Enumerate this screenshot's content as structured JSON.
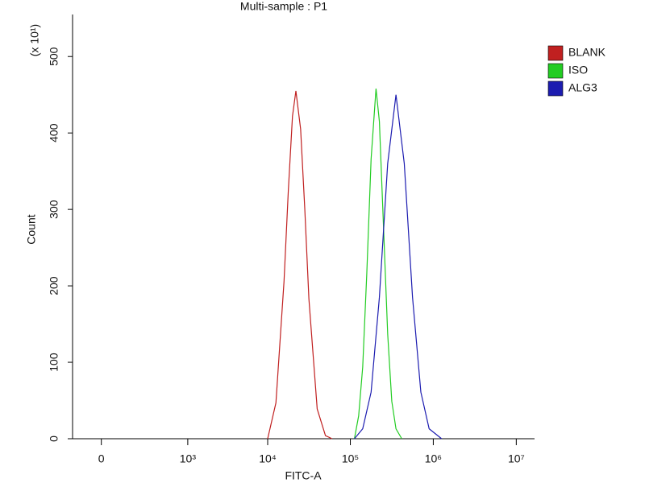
{
  "chart_data": {
    "type": "line",
    "title": "Multi-sample : P1",
    "x_label": "FITC-A",
    "y_label": "Count",
    "y_multiplier": "(x 10¹)",
    "xscale": "log",
    "xlim": [
      -55,
      16600000
    ],
    "xticks": [
      {
        "value": 0,
        "label": "0"
      },
      {
        "value": 1000,
        "label": "10³"
      },
      {
        "value": 10000,
        "label": "10⁴"
      },
      {
        "value": 100000,
        "label": "10⁵"
      },
      {
        "value": 1000000,
        "label": "10⁶"
      },
      {
        "value": 10000000,
        "label": "10⁷"
      }
    ],
    "ylim": [
      0,
      555
    ],
    "yticks": [
      0,
      100,
      200,
      300,
      400,
      500
    ],
    "legend": "top-right",
    "series": [
      {
        "name": "BLANK",
        "color": "#c02020",
        "x": [
          10000,
          12600,
          15800,
          17800,
          20000,
          22000,
          25100,
          28200,
          31600,
          39800,
          50100,
          60300
        ],
        "values": [
          0,
          47,
          206,
          324,
          422,
          455,
          405,
          300,
          183,
          39,
          4,
          0
        ]
      },
      {
        "name": "ISO",
        "color": "#22cc22",
        "x": [
          112000,
          126000,
          141000,
          158000,
          178000,
          204000,
          224000,
          251000,
          282000,
          316000,
          355000,
          417000
        ],
        "values": [
          0,
          30,
          94,
          217,
          366,
          458,
          415,
          278,
          137,
          49,
          13,
          0
        ]
      },
      {
        "name": "ALG3",
        "color": "#1c1cb0",
        "x": [
          112000,
          141000,
          178000,
          224000,
          282000,
          355000,
          447000,
          562000,
          708000,
          891000,
          1260000
        ],
        "values": [
          0,
          13,
          61,
          185,
          360,
          450,
          360,
          185,
          61,
          13,
          0
        ]
      }
    ]
  }
}
